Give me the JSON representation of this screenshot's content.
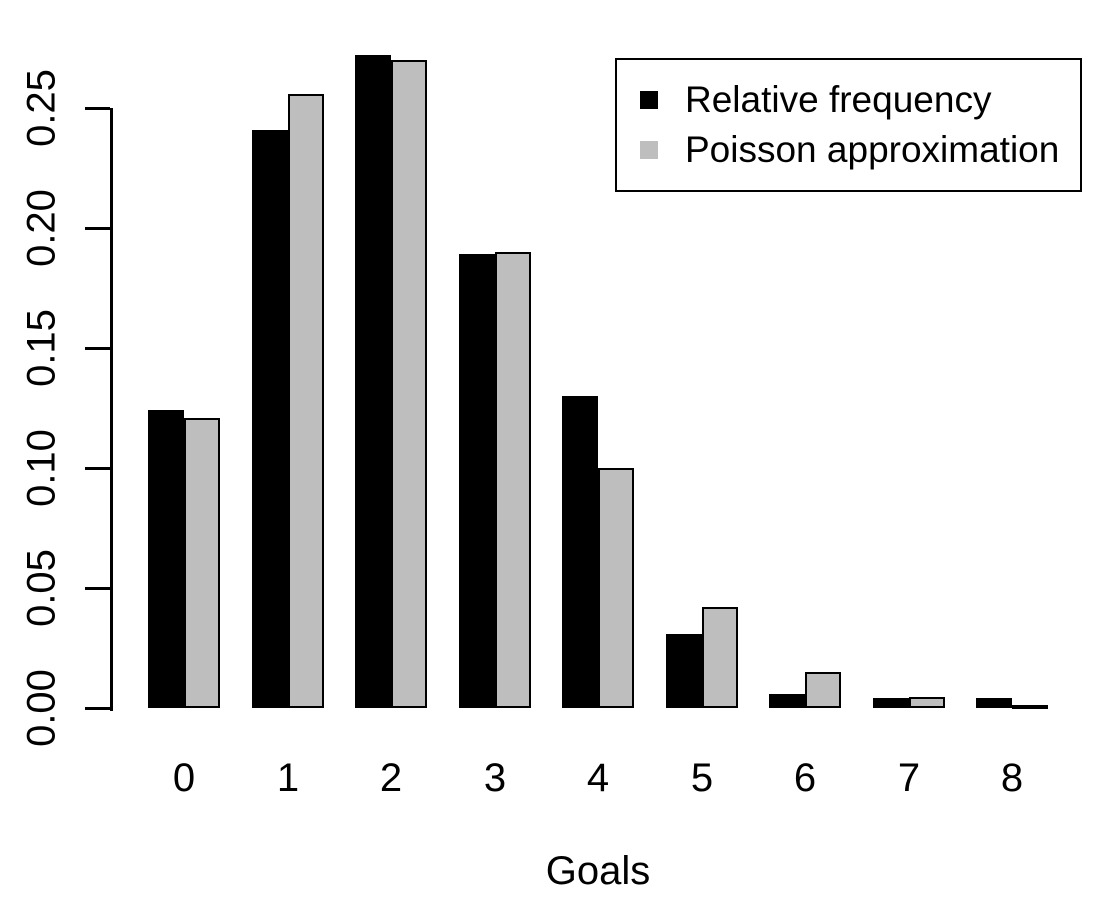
{
  "chart_data": {
    "type": "bar",
    "title": "",
    "xlabel": "Goals",
    "ylabel": "",
    "categories": [
      "0",
      "1",
      "2",
      "3",
      "4",
      "5",
      "6",
      "7",
      "8"
    ],
    "series": [
      {
        "name": "Relative frequency",
        "color": "#000000",
        "values": [
          0.124,
          0.241,
          0.272,
          0.189,
          0.13,
          0.031,
          0.006,
          0.004,
          0.004
        ]
      },
      {
        "name": "Poisson approximation",
        "color": "#BEBEBE",
        "values": [
          0.121,
          0.256,
          0.27,
          0.19,
          0.1,
          0.042,
          0.015,
          0.0045,
          0.0012
        ]
      }
    ],
    "ylim": [
      0,
      0.25
    ],
    "yticks": [
      0,
      0.05,
      0.1,
      0.15,
      0.2,
      0.25
    ],
    "ytick_labels": [
      "0.00",
      "0.05",
      "0.10",
      "0.15",
      "0.20",
      "0.25"
    ],
    "legend_position": "top-right",
    "grid": false,
    "bar_border_color": "#000000",
    "background": "#FFFFFF",
    "axis_color": "#000000"
  }
}
